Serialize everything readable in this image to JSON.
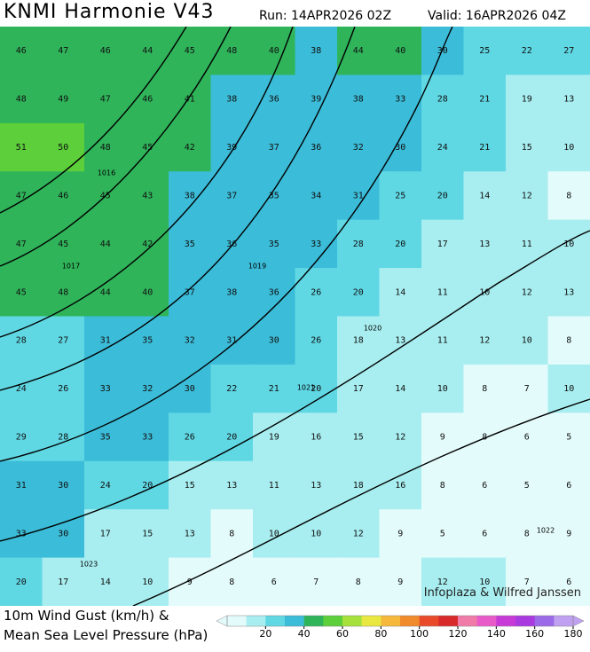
{
  "header": {
    "title": "KNMI Harmonie V43",
    "run": "Run: 14APR2026 02Z",
    "valid": "Valid: 16APR2026 04Z"
  },
  "map": {
    "rows": [
      [
        46,
        47,
        46,
        44,
        45,
        48,
        40,
        38,
        44,
        40,
        30,
        25,
        22,
        27
      ],
      [
        48,
        49,
        47,
        46,
        41,
        38,
        36,
        39,
        38,
        33,
        28,
        21,
        19,
        13
      ],
      [
        51,
        50,
        48,
        45,
        42,
        39,
        37,
        36,
        32,
        30,
        24,
        21,
        15,
        10
      ],
      [
        47,
        46,
        45,
        43,
        38,
        37,
        35,
        34,
        31,
        25,
        20,
        14,
        12,
        8
      ],
      [
        47,
        45,
        44,
        42,
        35,
        36,
        35,
        33,
        28,
        20,
        17,
        13,
        11,
        10
      ],
      [
        45,
        48,
        44,
        40,
        37,
        38,
        36,
        26,
        20,
        14,
        11,
        10,
        12,
        13
      ],
      [
        28,
        27,
        31,
        35,
        32,
        31,
        30,
        26,
        18,
        13,
        11,
        12,
        10,
        8
      ],
      [
        24,
        26,
        33,
        32,
        30,
        22,
        21,
        20,
        17,
        14,
        10,
        8,
        7,
        10
      ],
      [
        29,
        28,
        35,
        33,
        26,
        20,
        19,
        16,
        15,
        12,
        9,
        8,
        6,
        5
      ],
      [
        31,
        30,
        24,
        20,
        15,
        13,
        11,
        13,
        18,
        16,
        8,
        6,
        5,
        6
      ],
      [
        33,
        30,
        17,
        15,
        13,
        8,
        10,
        10,
        12,
        9,
        5,
        6,
        8,
        9
      ],
      [
        20,
        17,
        14,
        10,
        9,
        8,
        6,
        7,
        8,
        9,
        12,
        10,
        7,
        6
      ]
    ],
    "isobar_labels": [
      "1016",
      "1017",
      "1019",
      "1020",
      "1021",
      "1022",
      "1023"
    ],
    "credit": "Infoplaza & Wilfred Janssen"
  },
  "legend": {
    "line1": "10m Wind Gust (km/h) &",
    "line2": "Mean Sea Level Pressure (hPa)",
    "xlim": [
      0,
      180
    ],
    "ticks": [
      20,
      40,
      60,
      80,
      100,
      120,
      140,
      160,
      180
    ],
    "colors": [
      "#e4fbfb",
      "#a8eef0",
      "#5fd8e4",
      "#3bbcd8",
      "#2fb45a",
      "#5ccf3a",
      "#a6e03a",
      "#e8e840",
      "#f5b83a",
      "#f08a2a",
      "#e84a2a",
      "#d82a2a",
      "#f07aa8",
      "#e85ac8",
      "#c83ad8",
      "#a83ae0",
      "#9a6ae8",
      "#c0a0f0"
    ]
  }
}
